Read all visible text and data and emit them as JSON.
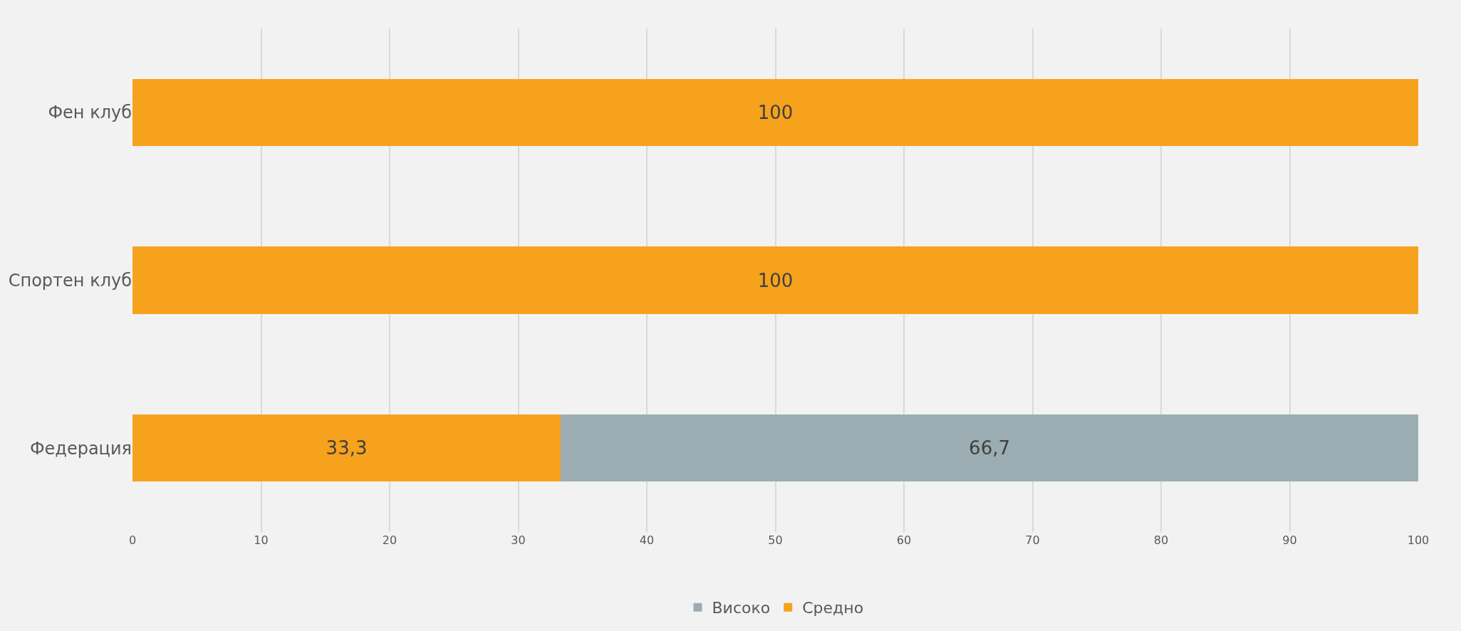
{
  "chart_data": {
    "type": "bar",
    "orientation": "horizontal",
    "stacked": true,
    "categories": [
      "Фен клуб",
      "Спортен клуб",
      "Федерация"
    ],
    "series": [
      {
        "name": "Средно",
        "color": "#f7a21d",
        "values": [
          100,
          100,
          33.3
        ],
        "value_labels": [
          "100",
          "100",
          "33,3"
        ]
      },
      {
        "name": "Високо",
        "color": "#9badb3",
        "values": [
          null,
          null,
          66.7
        ],
        "value_labels": [
          null,
          null,
          "66,7"
        ]
      }
    ],
    "xlim": [
      0,
      100
    ],
    "xticks": [
      0,
      10,
      20,
      30,
      40,
      50,
      60,
      70,
      80,
      90,
      100
    ],
    "grid": "x",
    "legend": "bottom"
  }
}
